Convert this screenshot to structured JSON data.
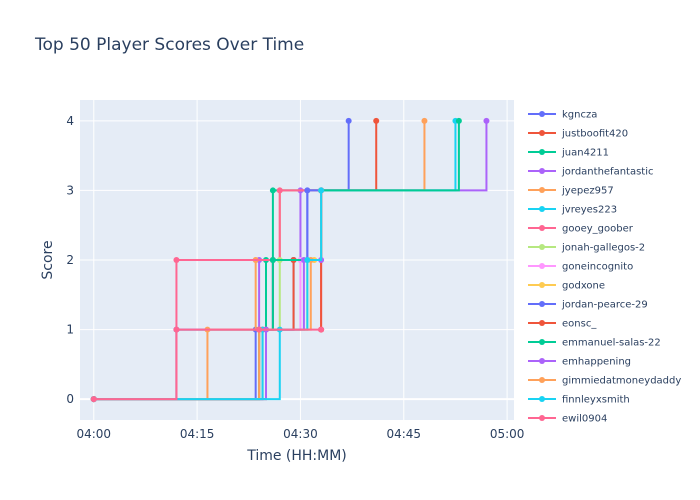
{
  "chart_data": {
    "type": "line",
    "title": "Top 50 Player Scores Over Time",
    "xlabel": "Time (HH:MM)",
    "ylabel": "Score",
    "xlim": [
      "03:58",
      "05:01"
    ],
    "ylim": [
      -0.3,
      4.3
    ],
    "x_ticks": [
      "04:00",
      "04:15",
      "04:30",
      "04:45",
      "05:00"
    ],
    "y_ticks": [
      0,
      1,
      2,
      3,
      4
    ],
    "grid": true,
    "legend_position": "right",
    "line_shape": "step",
    "series": [
      {
        "name": "kgncza",
        "color": "#636efa",
        "x": [
          "04:00",
          "04:23:30",
          "04:26",
          "04:31",
          "04:37"
        ],
        "y": [
          0,
          1,
          2,
          3,
          4
        ]
      },
      {
        "name": "justboofit420",
        "color": "#EF553B",
        "x": [
          "04:00",
          "04:24:30",
          "04:26",
          "04:33",
          "04:41"
        ],
        "y": [
          0,
          1,
          2,
          3,
          4
        ]
      },
      {
        "name": "juan4211",
        "color": "#00cc96",
        "x": [
          "04:00",
          "04:12",
          "04:25",
          "04:26",
          "04:33"
        ],
        "y": [
          0,
          1,
          2,
          3,
          3
        ]
      },
      {
        "name": "jordanthefantastic",
        "color": "#ab63fa",
        "x": [
          "04:00",
          "04:12",
          "04:24",
          "04:30",
          "04:57"
        ],
        "y": [
          0,
          1,
          2,
          3,
          4
        ]
      },
      {
        "name": "jyepez957",
        "color": "#FFA15A",
        "x": [
          "04:00",
          "04:16:30",
          "04:23:30",
          "04:27",
          "04:48"
        ],
        "y": [
          0,
          1,
          2,
          3,
          4
        ]
      },
      {
        "name": "jvreyes223",
        "color": "#19d3f3",
        "x": [
          "04:00",
          "04:24:30",
          "04:29",
          "04:33",
          "04:52:30"
        ],
        "y": [
          0,
          1,
          2,
          3,
          4
        ]
      },
      {
        "name": "gooey_goober",
        "color": "#FF6692",
        "x": [
          "04:00",
          "04:12",
          "04:27",
          "04:33",
          "04:33"
        ],
        "y": [
          0,
          2,
          3,
          3,
          1
        ]
      },
      {
        "name": "jonah-gallegos-2",
        "color": "#B6E880",
        "x": [
          "04:00",
          "04:24",
          "04:27",
          "04:31",
          "04:33"
        ],
        "y": [
          0,
          1,
          2,
          2,
          3
        ]
      },
      {
        "name": "goneincognito",
        "color": "#FF97FF",
        "x": [
          "04:00",
          "04:24",
          "04:30",
          "04:31",
          "04:33"
        ],
        "y": [
          0,
          1,
          2,
          2,
          3
        ]
      },
      {
        "name": "godxone",
        "color": "#FECB52",
        "x": [
          "04:00",
          "04:24",
          "04:31",
          "04:32",
          "04:33"
        ],
        "y": [
          0,
          1,
          2,
          2,
          3
        ]
      },
      {
        "name": "jordan-pearce-29",
        "color": "#636efa",
        "x": [
          "04:00",
          "04:24",
          "04:29",
          "04:31",
          "04:33"
        ],
        "y": [
          0,
          1,
          2,
          3,
          3
        ]
      },
      {
        "name": "eonsc_",
        "color": "#EF553B",
        "x": [
          "04:00",
          "04:25",
          "04:29",
          "04:33",
          "04:33"
        ],
        "y": [
          0,
          1,
          2,
          3,
          1
        ]
      },
      {
        "name": "emmanuel-salas-22",
        "color": "#00cc96",
        "x": [
          "04:00",
          "04:24",
          "04:26",
          "04:33",
          "04:53"
        ],
        "y": [
          0,
          1,
          2,
          3,
          4
        ]
      },
      {
        "name": "emhappening",
        "color": "#ab63fa",
        "x": [
          "04:00",
          "04:25",
          "04:30:30",
          "04:33",
          "04:33"
        ],
        "y": [
          0,
          1,
          2,
          3,
          2
        ]
      },
      {
        "name": "gimmiedatmoneydaddy",
        "color": "#FFA15A",
        "x": [
          "04:00",
          "04:24",
          "04:31:30",
          "04:33"
        ],
        "y": [
          0,
          1,
          2,
          3
        ]
      },
      {
        "name": "finnleyxsmith",
        "color": "#19d3f3",
        "x": [
          "04:00",
          "04:27",
          "04:31",
          "04:33"
        ],
        "y": [
          0,
          1,
          2,
          3
        ]
      },
      {
        "name": "ewil0904",
        "color": "#FF6692",
        "x": [
          "04:00",
          "04:12",
          "04:24",
          "04:33"
        ],
        "y": [
          0,
          1,
          1,
          1
        ]
      }
    ]
  }
}
